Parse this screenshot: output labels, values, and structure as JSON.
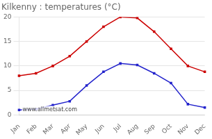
{
  "chart_data": {
    "type": "line",
    "title": "Kilkenny : temperatures (°C)",
    "categories": [
      "Jan",
      "Feb",
      "Mar",
      "Apr",
      "May",
      "Jun",
      "Jul",
      "Aug",
      "Sep",
      "Oct",
      "Nov",
      "Dec"
    ],
    "series": [
      {
        "color": "#cc0000",
        "marker": "square",
        "line_style": "solid",
        "values": [
          8.0,
          8.5,
          10.0,
          12.0,
          15.0,
          18.0,
          20.0,
          19.8,
          17.0,
          13.5,
          10.0,
          8.8
        ]
      },
      {
        "color": "#2222cc",
        "marker": "square",
        "line_style": "solid",
        "values": [
          1.0,
          1.2,
          2.0,
          2.8,
          6.0,
          8.8,
          10.5,
          10.2,
          8.5,
          6.5,
          2.2,
          1.5
        ]
      }
    ],
    "ylim": [
      0,
      20
    ],
    "yticks": [
      0,
      5,
      10,
      15,
      20
    ],
    "grid": true,
    "annotations": [
      "www.allmetsat.com"
    ]
  }
}
